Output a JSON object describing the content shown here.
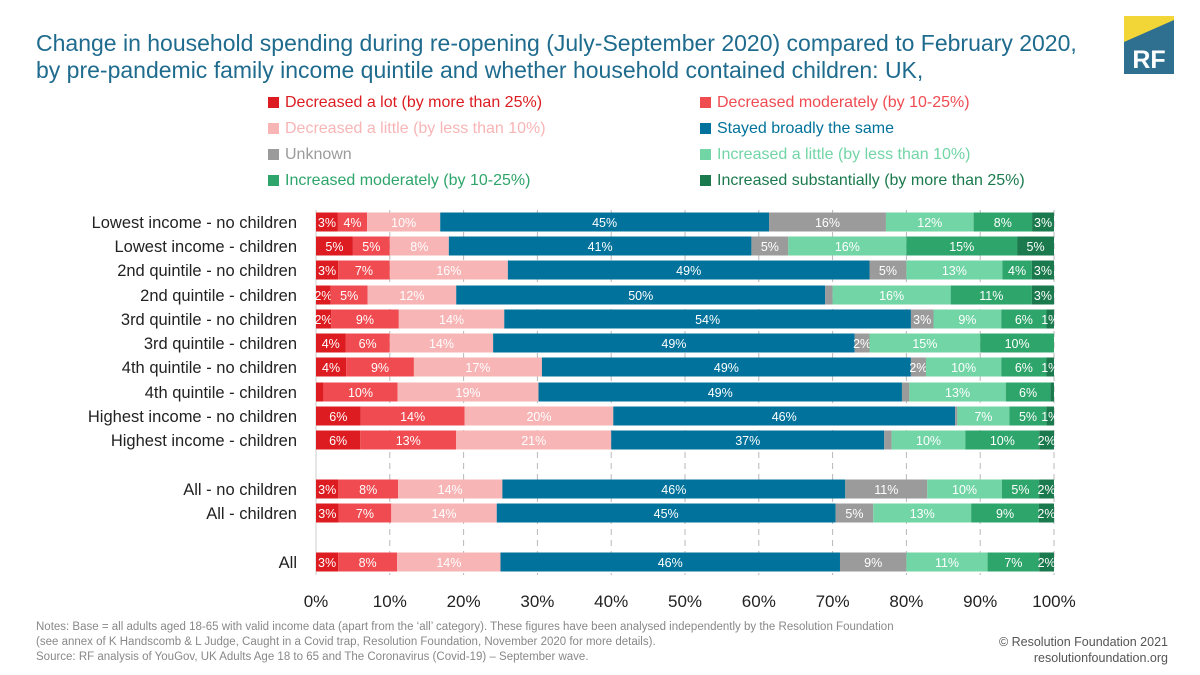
{
  "title": "Change in household spending during re-opening (July-September 2020) compared to February 2020, by pre-pandemic family income quintile and whether household contained children: UK,",
  "logo": {
    "text": "RF",
    "colors": {
      "yellow": "#f2d638",
      "blue": "#2f6f8f"
    }
  },
  "chart_data": {
    "type": "bar",
    "orientation": "horizontal",
    "stacked": "100%",
    "xlim": [
      0,
      100
    ],
    "x_ticks": [
      "0%",
      "10%",
      "20%",
      "30%",
      "40%",
      "50%",
      "60%",
      "70%",
      "80%",
      "90%",
      "100%"
    ],
    "grid": "vertical dashed",
    "legend_placement": "top",
    "series": [
      {
        "name": "Decreased a lot (by more than 25%)",
        "color": "#dc1c21"
      },
      {
        "name": "Decreased moderately (by 10-25%)",
        "color": "#ef4b51"
      },
      {
        "name": "Decreased a little (by less than 10%)",
        "color": "#f8b5b6"
      },
      {
        "name": "Stayed broadly the same",
        "color": "#00729b"
      },
      {
        "name": "Unknown",
        "color": "#9b9b9b"
      },
      {
        "name": "Increased a little (by less than 10%)",
        "color": "#72d5a6"
      },
      {
        "name": "Increased moderately (by 10-25%)",
        "color": "#2ea56b"
      },
      {
        "name": "Increased substantially (by more than 25%)",
        "color": "#1b7a4d"
      }
    ],
    "categories": [
      {
        "label": "Lowest income - no children",
        "values": [
          3,
          4,
          10,
          45,
          16,
          12,
          8,
          3
        ],
        "labels": [
          "3%",
          "4%",
          "10%",
          "45%",
          "16%",
          "12%",
          "8%",
          "3%"
        ]
      },
      {
        "label": "Lowest income - children",
        "values": [
          5,
          5,
          8,
          41,
          5,
          16,
          15,
          5
        ],
        "labels": [
          "5%",
          "5%",
          "8%",
          "41%",
          "5%",
          "16%",
          "15%",
          "5%"
        ]
      },
      {
        "label": "2nd quintile - no children",
        "values": [
          3,
          7,
          16,
          49,
          5,
          13,
          4,
          3
        ],
        "labels": [
          "3%",
          "7%",
          "16%",
          "49%",
          "5%",
          "13%",
          "4%",
          "3%"
        ]
      },
      {
        "label": "2nd quintile - children",
        "values": [
          2,
          5,
          12,
          50,
          1,
          16,
          11,
          3
        ],
        "labels": [
          "2%",
          "5%",
          "12%",
          "50%",
          "",
          "16%",
          "11%",
          "3%"
        ]
      },
      {
        "label": "3rd quintile - no children",
        "values": [
          2,
          9,
          14,
          54,
          3,
          9,
          6,
          1
        ],
        "labels": [
          "2%",
          "9%",
          "14%",
          "54%",
          "3%",
          "9%",
          "6%",
          "1%"
        ]
      },
      {
        "label": "3rd quintile - children",
        "values": [
          4,
          6,
          14,
          49,
          2,
          15,
          10,
          0
        ],
        "labels": [
          "4%",
          "6%",
          "14%",
          "49%",
          "2%",
          "15%",
          "10%",
          ""
        ]
      },
      {
        "label": "4th quintile - no children",
        "values": [
          4,
          9,
          17,
          49,
          2,
          10,
          6,
          1
        ],
        "labels": [
          "4%",
          "9%",
          "17%",
          "49%",
          "2%",
          "10%",
          "6%",
          "1%"
        ]
      },
      {
        "label": "4th quintile - children",
        "values": [
          1,
          10,
          19,
          49,
          1,
          13,
          6,
          0.5
        ],
        "labels": [
          "",
          "10%",
          "19%",
          "49%",
          "",
          "13%",
          "6%",
          ""
        ]
      },
      {
        "label": "Highest income - no children",
        "values": [
          6,
          14,
          20,
          46,
          0.3,
          7,
          5,
          1
        ],
        "labels": [
          "6%",
          "14%",
          "20%",
          "46%",
          "",
          "7%",
          "5%",
          "1%"
        ]
      },
      {
        "label": "Highest income - children",
        "values": [
          6,
          13,
          21,
          37,
          1,
          10,
          10,
          2
        ],
        "labels": [
          "6%",
          "13%",
          "21%",
          "37%",
          "",
          "10%",
          "10%",
          "2%"
        ]
      },
      {
        "label": "All - no children",
        "values": [
          3,
          8,
          14,
          46,
          11,
          10,
          5,
          2
        ],
        "labels": [
          "3%",
          "8%",
          "14%",
          "46%",
          "11%",
          "10%",
          "5%",
          "2%"
        ]
      },
      {
        "label": "All - children",
        "values": [
          3,
          7,
          14,
          45,
          5,
          13,
          9,
          2
        ],
        "labels": [
          "3%",
          "7%",
          "14%",
          "45%",
          "5%",
          "13%",
          "9%",
          "2%"
        ]
      },
      {
        "label": "All",
        "values": [
          3,
          8,
          14,
          46,
          9,
          11,
          7,
          2
        ],
        "labels": [
          "3%",
          "8%",
          "14%",
          "46%",
          "9%",
          "11%",
          "7%",
          "2%"
        ]
      }
    ]
  },
  "notes": {
    "line1": "Notes: Base = all adults aged 18-65 with valid income data (apart from the ‘all’ category). These figures have been analysed independently by the Resolution Foundation",
    "line2": "(see annex of K Handscomb & L Judge, Caught in a Covid trap, Resolution Foundation, November 2020 for more details).",
    "line3": "Source: RF analysis of YouGov, UK Adults Age 18 to 65 and The Coronavirus (Covid-19) – September wave."
  },
  "credit": {
    "line1": "© Resolution Foundation 2021",
    "line2": "resolutionfoundation.org"
  }
}
